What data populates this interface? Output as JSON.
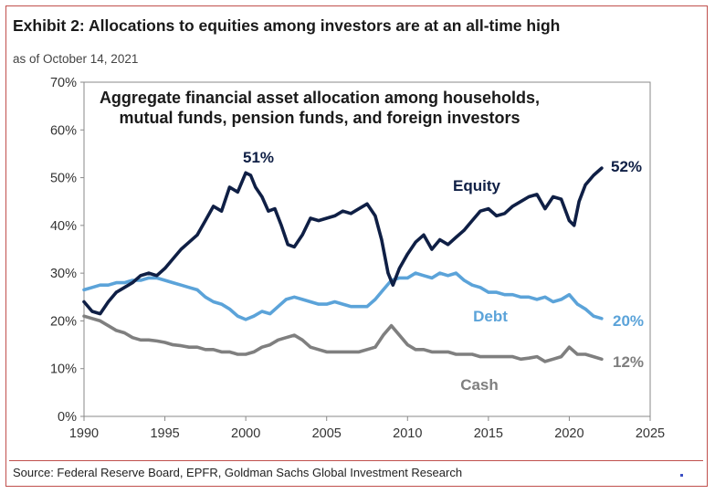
{
  "header": {
    "title": "Exhibit 2: Allocations to equities among investors are at an all-time high",
    "subtitle": "as of October 14, 2021"
  },
  "footer": {
    "source": "Source: Federal Reserve Board, EPFR, Goldman Sachs Global Investment Research"
  },
  "chart_data": {
    "type": "line",
    "title_lines": [
      "Aggregate financial asset allocation among households,",
      "mutual funds, pension funds, and foreign investors"
    ],
    "xlabel": "",
    "ylabel": "",
    "xlim": [
      1990,
      2025
    ],
    "ylim": [
      0,
      70
    ],
    "x_ticks": [
      1990,
      1995,
      2000,
      2005,
      2010,
      2015,
      2020,
      2025
    ],
    "x_tick_labels": [
      "1990",
      "1995",
      "2000",
      "2005",
      "2010",
      "2015",
      "2020",
      "2025"
    ],
    "y_ticks": [
      0,
      10,
      20,
      30,
      40,
      50,
      60,
      70
    ],
    "y_tick_labels": [
      "0%",
      "10%",
      "20%",
      "30%",
      "40%",
      "50%",
      "60%",
      "70%"
    ],
    "grid": false,
    "colors": {
      "Equity": "#0f1f45",
      "Debt": "#5ba3d9",
      "Cash": "#7f7f7f"
    },
    "series": [
      {
        "name": "Equity",
        "label": "Equity",
        "end_label": "52%",
        "peak_label": "51%",
        "points": [
          [
            1990,
            24
          ],
          [
            1990.5,
            22
          ],
          [
            1991,
            21.5
          ],
          [
            1991.5,
            24
          ],
          [
            1992,
            26
          ],
          [
            1992.5,
            27
          ],
          [
            1993,
            28
          ],
          [
            1993.5,
            29.5
          ],
          [
            1994,
            30
          ],
          [
            1994.5,
            29.5
          ],
          [
            1995,
            31
          ],
          [
            1995.5,
            33
          ],
          [
            1996,
            35
          ],
          [
            1996.5,
            36.5
          ],
          [
            1997,
            38
          ],
          [
            1997.5,
            41
          ],
          [
            1998,
            44
          ],
          [
            1998.5,
            43
          ],
          [
            1999,
            48
          ],
          [
            1999.5,
            47
          ],
          [
            2000,
            51
          ],
          [
            2000.3,
            50.5
          ],
          [
            2000.6,
            48
          ],
          [
            2001,
            46
          ],
          [
            2001.4,
            43
          ],
          [
            2001.8,
            43.5
          ],
          [
            2002.2,
            40
          ],
          [
            2002.6,
            36
          ],
          [
            2003,
            35.5
          ],
          [
            2003.5,
            38
          ],
          [
            2004,
            41.5
          ],
          [
            2004.5,
            41
          ],
          [
            2005,
            41.5
          ],
          [
            2005.5,
            42
          ],
          [
            2006,
            43
          ],
          [
            2006.5,
            42.5
          ],
          [
            2007,
            43.5
          ],
          [
            2007.5,
            44.5
          ],
          [
            2008,
            42
          ],
          [
            2008.4,
            37
          ],
          [
            2008.8,
            30
          ],
          [
            2009.1,
            27.5
          ],
          [
            2009.5,
            31
          ],
          [
            2010,
            34
          ],
          [
            2010.5,
            36.5
          ],
          [
            2011,
            38
          ],
          [
            2011.5,
            35
          ],
          [
            2012,
            37
          ],
          [
            2012.5,
            36
          ],
          [
            2013,
            37.5
          ],
          [
            2013.5,
            39
          ],
          [
            2014,
            41
          ],
          [
            2014.5,
            43
          ],
          [
            2015,
            43.5
          ],
          [
            2015.5,
            42
          ],
          [
            2016,
            42.5
          ],
          [
            2016.5,
            44
          ],
          [
            2017,
            45
          ],
          [
            2017.5,
            46
          ],
          [
            2018,
            46.5
          ],
          [
            2018.5,
            43.5
          ],
          [
            2019,
            46
          ],
          [
            2019.5,
            45.5
          ],
          [
            2020,
            41
          ],
          [
            2020.3,
            40
          ],
          [
            2020.6,
            45
          ],
          [
            2021,
            48.5
          ],
          [
            2021.5,
            50.5
          ],
          [
            2022,
            52
          ]
        ]
      },
      {
        "name": "Debt",
        "label": "Debt",
        "end_label": "20%",
        "points": [
          [
            1990,
            26.5
          ],
          [
            1990.5,
            27
          ],
          [
            1991,
            27.5
          ],
          [
            1991.5,
            27.5
          ],
          [
            1992,
            28
          ],
          [
            1992.5,
            28
          ],
          [
            1993,
            28.5
          ],
          [
            1993.5,
            28.5
          ],
          [
            1994,
            29
          ],
          [
            1994.5,
            29
          ],
          [
            1995,
            28.5
          ],
          [
            1995.5,
            28
          ],
          [
            1996,
            27.5
          ],
          [
            1996.5,
            27
          ],
          [
            1997,
            26.5
          ],
          [
            1997.5,
            25
          ],
          [
            1998,
            24
          ],
          [
            1998.5,
            23.5
          ],
          [
            1999,
            22.5
          ],
          [
            1999.5,
            21
          ],
          [
            2000,
            20.3
          ],
          [
            2000.5,
            21
          ],
          [
            2001,
            22
          ],
          [
            2001.5,
            21.5
          ],
          [
            2002,
            23
          ],
          [
            2002.5,
            24.5
          ],
          [
            2003,
            25
          ],
          [
            2003.5,
            24.5
          ],
          [
            2004,
            24
          ],
          [
            2004.5,
            23.5
          ],
          [
            2005,
            23.5
          ],
          [
            2005.5,
            24
          ],
          [
            2006,
            23.5
          ],
          [
            2006.5,
            23
          ],
          [
            2007,
            23
          ],
          [
            2007.5,
            23
          ],
          [
            2008,
            24.5
          ],
          [
            2008.5,
            26.5
          ],
          [
            2009,
            28.5
          ],
          [
            2009.5,
            29
          ],
          [
            2010,
            29
          ],
          [
            2010.5,
            30
          ],
          [
            2011,
            29.5
          ],
          [
            2011.5,
            29
          ],
          [
            2012,
            30
          ],
          [
            2012.5,
            29.5
          ],
          [
            2013,
            30
          ],
          [
            2013.5,
            28.5
          ],
          [
            2014,
            27.5
          ],
          [
            2014.5,
            27
          ],
          [
            2015,
            26
          ],
          [
            2015.5,
            26
          ],
          [
            2016,
            25.5
          ],
          [
            2016.5,
            25.5
          ],
          [
            2017,
            25
          ],
          [
            2017.5,
            25
          ],
          [
            2018,
            24.5
          ],
          [
            2018.5,
            25
          ],
          [
            2019,
            24
          ],
          [
            2019.5,
            24.5
          ],
          [
            2020,
            25.5
          ],
          [
            2020.5,
            23.5
          ],
          [
            2021,
            22.5
          ],
          [
            2021.5,
            21
          ],
          [
            2022,
            20.5
          ]
        ]
      },
      {
        "name": "Cash",
        "label": "Cash",
        "end_label": "12%",
        "points": [
          [
            1990,
            21
          ],
          [
            1990.5,
            20.5
          ],
          [
            1991,
            20
          ],
          [
            1991.5,
            19
          ],
          [
            1992,
            18
          ],
          [
            1992.5,
            17.5
          ],
          [
            1993,
            16.5
          ],
          [
            1993.5,
            16
          ],
          [
            1994,
            16
          ],
          [
            1994.5,
            15.8
          ],
          [
            1995,
            15.5
          ],
          [
            1995.5,
            15
          ],
          [
            1996,
            14.8
          ],
          [
            1996.5,
            14.5
          ],
          [
            1997,
            14.5
          ],
          [
            1997.5,
            14
          ],
          [
            1998,
            14
          ],
          [
            1998.5,
            13.5
          ],
          [
            1999,
            13.5
          ],
          [
            1999.5,
            13
          ],
          [
            2000,
            13
          ],
          [
            2000.5,
            13.5
          ],
          [
            2001,
            14.5
          ],
          [
            2001.5,
            15
          ],
          [
            2002,
            16
          ],
          [
            2002.5,
            16.5
          ],
          [
            2003,
            17
          ],
          [
            2003.5,
            16
          ],
          [
            2004,
            14.5
          ],
          [
            2004.5,
            14
          ],
          [
            2005,
            13.5
          ],
          [
            2005.5,
            13.5
          ],
          [
            2006,
            13.5
          ],
          [
            2006.5,
            13.5
          ],
          [
            2007,
            13.5
          ],
          [
            2007.5,
            14
          ],
          [
            2008,
            14.5
          ],
          [
            2008.5,
            17
          ],
          [
            2009,
            19
          ],
          [
            2009.5,
            17
          ],
          [
            2010,
            15
          ],
          [
            2010.5,
            14
          ],
          [
            2011,
            14
          ],
          [
            2011.5,
            13.5
          ],
          [
            2012,
            13.5
          ],
          [
            2012.5,
            13.5
          ],
          [
            2013,
            13
          ],
          [
            2013.5,
            13
          ],
          [
            2014,
            13
          ],
          [
            2014.5,
            12.5
          ],
          [
            2015,
            12.5
          ],
          [
            2015.5,
            12.5
          ],
          [
            2016,
            12.5
          ],
          [
            2016.5,
            12.5
          ],
          [
            2017,
            12
          ],
          [
            2017.5,
            12.2
          ],
          [
            2018,
            12.5
          ],
          [
            2018.5,
            11.5
          ],
          [
            2019,
            12
          ],
          [
            2019.5,
            12.5
          ],
          [
            2020,
            14.5
          ],
          [
            2020.5,
            13
          ],
          [
            2021,
            13
          ],
          [
            2021.5,
            12.5
          ],
          [
            2022,
            12
          ]
        ]
      }
    ]
  }
}
